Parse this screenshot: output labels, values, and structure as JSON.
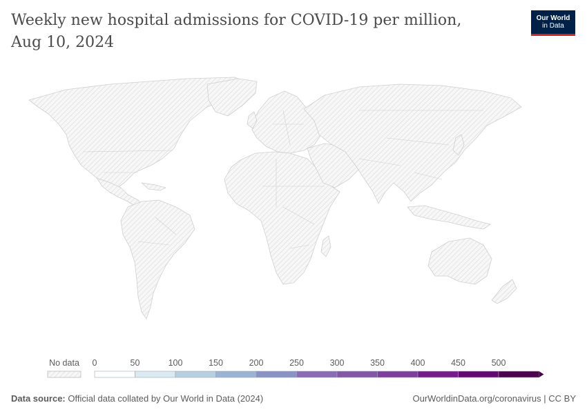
{
  "title": "Weekly new hospital admissions for COVID-19 per million, Aug 10, 2024",
  "logo": {
    "line1": "Our World",
    "line2": "in Data"
  },
  "legend": {
    "no_data_label": "No data",
    "ticks": [
      "0",
      "50",
      "100",
      "150",
      "200",
      "250",
      "300",
      "350",
      "400",
      "450",
      "500"
    ],
    "colors": [
      "#ffffff",
      "#dce9f0",
      "#b7cfdf",
      "#9cb3d2",
      "#8a92c4",
      "#8a6db0",
      "#8456a4",
      "#7f3e9a",
      "#761b8a",
      "#63096f",
      "#4d004b"
    ]
  },
  "footer": {
    "source_label": "Data source:",
    "source_text": "Official data collated by Our World in Data (2024)",
    "link": "OurWorldinData.org/coronavirus | CC BY"
  },
  "colors": {
    "land_fill": "#f4f4f4",
    "land_stroke": "#cfcfcf",
    "hatch": "#dcdcdc",
    "logo_bg": "#002147",
    "logo_accent": "#ce261e"
  }
}
